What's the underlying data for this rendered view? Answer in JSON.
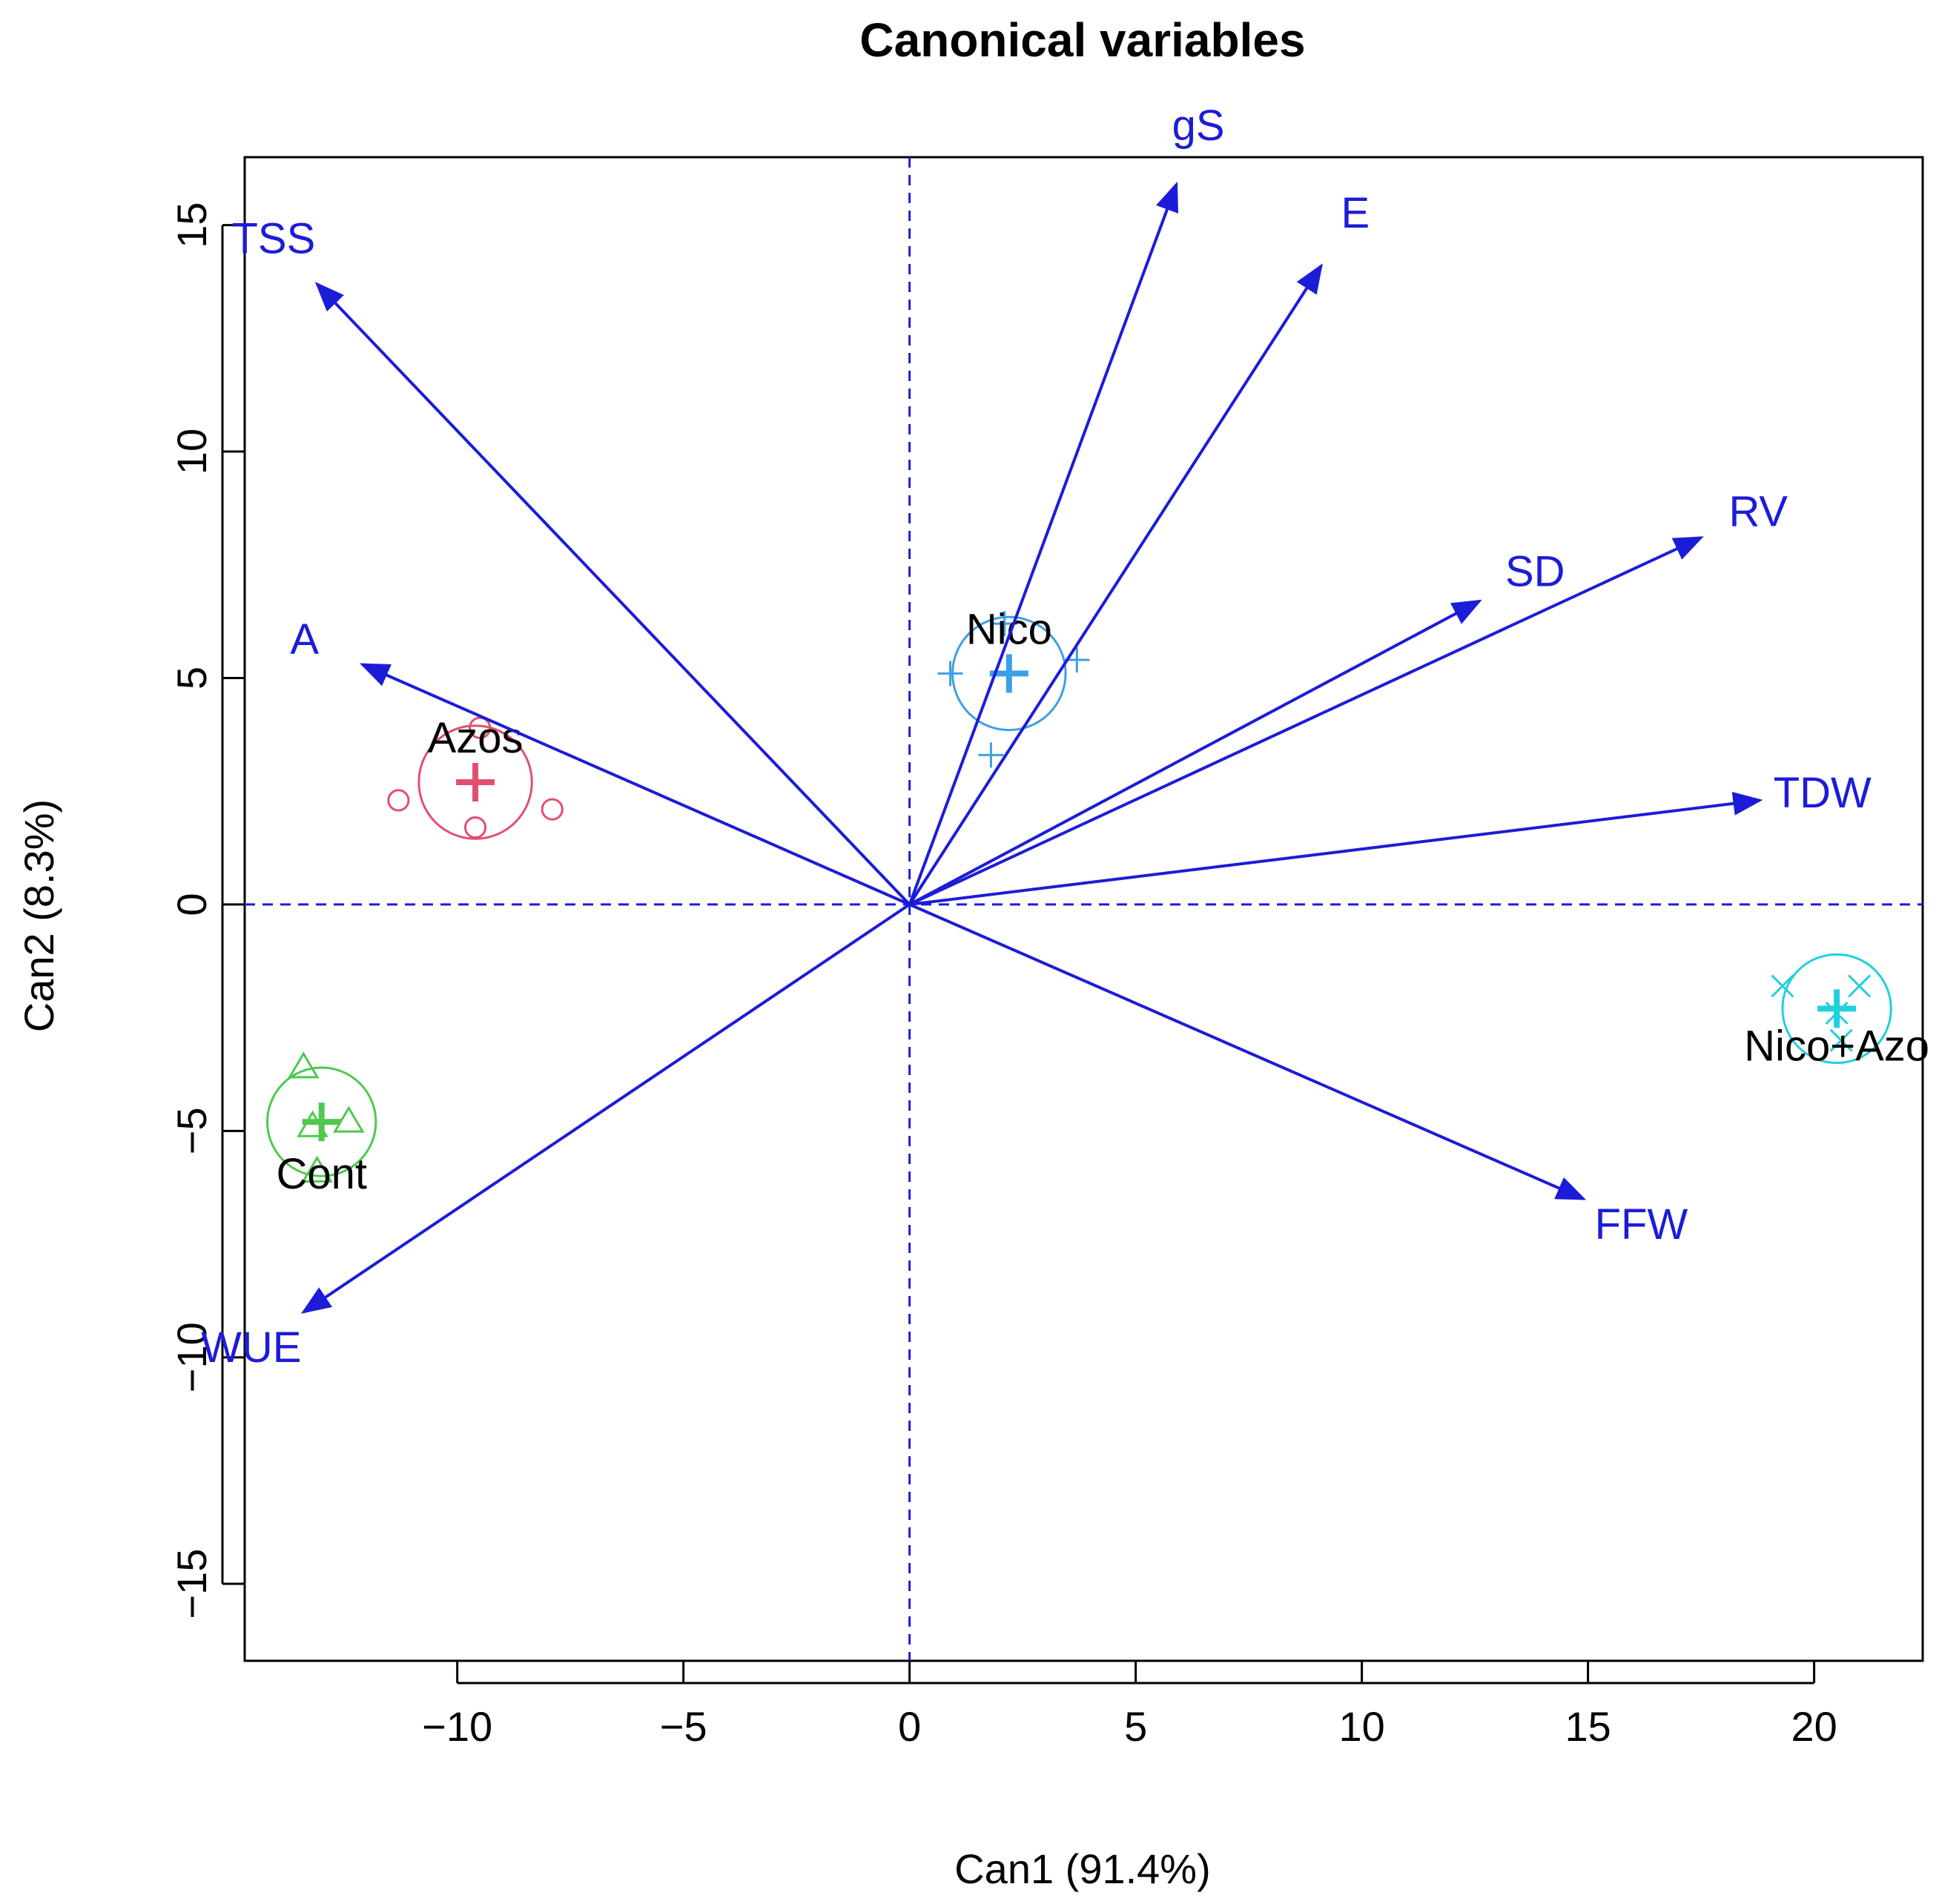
{
  "chart_data": {
    "type": "scatter",
    "title": "Canonical variables",
    "xlabel": "Can1 (91.4%)",
    "ylabel": "Can2 (8.3%)",
    "xlim": [
      -14.7,
      22.4
    ],
    "ylim": [
      -16.7,
      16.5
    ],
    "xticks": [
      -10,
      -5,
      0,
      5,
      10,
      15,
      20
    ],
    "yticks": [
      -15,
      -10,
      -5,
      0,
      5,
      10,
      15
    ],
    "reference_lines": {
      "x": 0,
      "y": 0,
      "style": "dashed"
    },
    "vector_color": "#1c1cd8",
    "vectors": [
      {
        "name": "TSS",
        "x": -13.1,
        "y": 13.7
      },
      {
        "name": "gS",
        "x": 5.9,
        "y": 15.9
      },
      {
        "name": "E",
        "x": 9.1,
        "y": 14.1
      },
      {
        "name": "RV",
        "x": 17.5,
        "y": 8.1
      },
      {
        "name": "SD",
        "x": 12.6,
        "y": 6.7
      },
      {
        "name": "A",
        "x": -12.1,
        "y": 5.3
      },
      {
        "name": "TDW",
        "x": 18.8,
        "y": 2.3
      },
      {
        "name": "FFW",
        "x": 14.9,
        "y": -6.5
      },
      {
        "name": "WUE",
        "x": -13.4,
        "y": -9.0
      }
    ],
    "groups": [
      {
        "name": "Nico",
        "color": "#3ca0e6",
        "marker": "plus",
        "centroid": [
          2.2,
          5.1
        ],
        "radius": 1.25,
        "points": [
          [
            0.9,
            5.1
          ],
          [
            3.7,
            5.4
          ],
          [
            1.8,
            3.3
          ],
          [
            2.1,
            6.2
          ]
        ]
      },
      {
        "name": "Azos",
        "color": "#e0506e",
        "marker": "circle",
        "centroid": [
          -9.6,
          2.7
        ],
        "radius": 1.25,
        "points": [
          [
            -11.3,
            2.3
          ],
          [
            -7.9,
            2.1
          ],
          [
            -9.6,
            1.7
          ],
          [
            -9.5,
            3.9
          ]
        ]
      },
      {
        "name": "Cont",
        "color": "#50c850",
        "marker": "triangle",
        "centroid": [
          -13.0,
          -4.8
        ],
        "radius": 1.2,
        "points": [
          [
            -13.4,
            -3.6
          ],
          [
            -12.4,
            -4.8
          ],
          [
            -13.1,
            -5.9
          ],
          [
            -13.2,
            -4.9
          ]
        ]
      },
      {
        "name": "Nico+Azo",
        "color": "#20d0dc",
        "marker": "cross",
        "centroid": [
          20.5,
          -2.3
        ],
        "radius": 1.2,
        "points": [
          [
            19.3,
            -1.8
          ],
          [
            21.0,
            -1.8
          ],
          [
            20.6,
            -3.0
          ],
          [
            20.5,
            -2.4
          ]
        ]
      }
    ]
  }
}
